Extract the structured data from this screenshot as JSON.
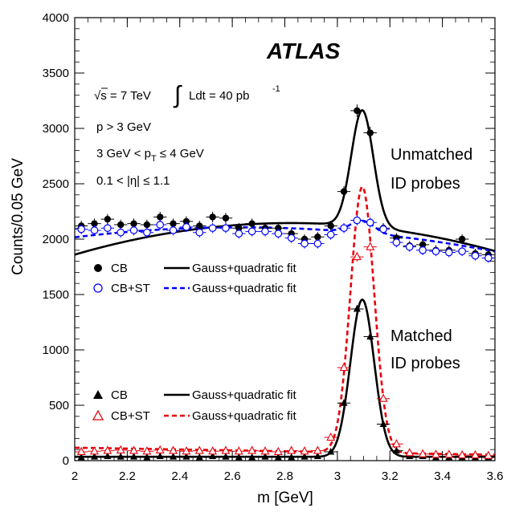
{
  "chart_data": {
    "type": "scatter",
    "xlabel": "m [GeV]",
    "ylabel": "Counts/0.05 GeV",
    "xlim": [
      2.0,
      3.6
    ],
    "ylim": [
      0,
      4000
    ],
    "x_ticks": [
      "2",
      "2.2",
      "2.4",
      "2.6",
      "2.8",
      "3",
      "3.2",
      "3.4",
      "3.6"
    ],
    "y_ticks": [
      "0",
      "500",
      "1000",
      "1500",
      "2000",
      "2500",
      "3000",
      "3500",
      "4000"
    ],
    "x_tick_values": [
      2.0,
      2.2,
      2.4,
      2.6,
      2.8,
      3.0,
      3.2,
      3.4,
      3.6
    ],
    "y_tick_values": [
      0,
      500,
      1000,
      1500,
      2000,
      2500,
      3000,
      3500,
      4000
    ],
    "atlas_label": "ATLAS",
    "info": {
      "sqrt_s": "√s = 7 TeV",
      "lumi_integral": "∫",
      "lumi_text": "Ldt = 40 pb",
      "lumi_exp": "-1",
      "p_cut": "p > 3 GeV",
      "pt_cut_a": "3 GeV < p",
      "pt_cut_sub": "T",
      "pt_cut_b": " ≤ 4 GeV",
      "eta_cut": "0.1 < |η| ≤ 1.1"
    },
    "annotations": {
      "unmatched_1": "Unmatched",
      "unmatched_2": "ID probes",
      "matched_1": "Matched",
      "matched_2": "ID probes"
    },
    "legend_top": {
      "m1": "CB",
      "m2": "CB+ST",
      "l1": "Gauss+quadratic fit",
      "l2": "Gauss+quadratic fit"
    },
    "legend_bottom": {
      "m1": "CB",
      "m2": "CB+ST",
      "l1": "Gauss+quadratic fit",
      "l2": "Gauss+quadratic fit"
    },
    "x": [
      2.025,
      2.075,
      2.125,
      2.175,
      2.225,
      2.275,
      2.325,
      2.375,
      2.425,
      2.475,
      2.525,
      2.575,
      2.625,
      2.675,
      2.725,
      2.775,
      2.825,
      2.875,
      2.925,
      2.975,
      3.025,
      3.075,
      3.125,
      3.175,
      3.225,
      3.275,
      3.325,
      3.375,
      3.425,
      3.475,
      3.525,
      3.575
    ],
    "series": [
      {
        "name": "CB",
        "group": "Unmatched ID probes",
        "marker": "filled-circle",
        "color": "#000000",
        "values": [
          2120,
          2140,
          2180,
          2130,
          2140,
          2130,
          2200,
          2140,
          2160,
          2120,
          2200,
          2190,
          2100,
          2140,
          2100,
          2100,
          2050,
          2000,
          2020,
          2120,
          2430,
          3160,
          2960,
          2100,
          2010,
          1940,
          1950,
          1900,
          1900,
          2000,
          1870,
          1860
        ]
      },
      {
        "name": "CB+ST",
        "group": "Unmatched ID probes",
        "marker": "open-circle",
        "color": "#0000ff",
        "values": [
          2090,
          2080,
          2100,
          2060,
          2080,
          2060,
          2130,
          2080,
          2110,
          2060,
          2100,
          2100,
          2050,
          2070,
          2070,
          2050,
          2010,
          1960,
          1960,
          2040,
          2100,
          2170,
          2150,
          2090,
          1970,
          1930,
          1900,
          1890,
          1880,
          1890,
          1850,
          1830
        ]
      },
      {
        "name": "CB",
        "group": "Matched ID probes",
        "marker": "filled-triangle",
        "color": "#000000",
        "values": [
          30,
          35,
          40,
          35,
          35,
          30,
          40,
          35,
          35,
          30,
          40,
          35,
          30,
          30,
          35,
          30,
          30,
          35,
          40,
          80,
          520,
          1370,
          1120,
          330,
          90,
          40,
          40,
          30,
          30,
          30,
          30,
          30
        ]
      },
      {
        "name": "CB+ST",
        "group": "Matched ID probes",
        "marker": "open-triangle",
        "color": "#e8000b",
        "values": [
          80,
          85,
          90,
          95,
          90,
          85,
          95,
          90,
          85,
          90,
          85,
          90,
          85,
          90,
          85,
          80,
          90,
          85,
          90,
          210,
          840,
          1840,
          1930,
          560,
          150,
          70,
          60,
          55,
          55,
          50,
          50,
          45
        ]
      }
    ],
    "fits": [
      {
        "name": "Gauss+quadratic fit",
        "applies_to": "CB unmatched",
        "style": "solid",
        "color": "#000000",
        "amp": 1050,
        "mu": 3.095,
        "sigma": 0.042,
        "a": 2145,
        "b": 20,
        "c": -420
      },
      {
        "name": "Gauss+quadratic fit",
        "applies_to": "CB+ST unmatched",
        "style": "dashed",
        "color": "#0000ff",
        "amp": 110,
        "mu": 3.095,
        "sigma": 0.045,
        "a": 2100,
        "b": -80,
        "c": -230
      },
      {
        "name": "Gauss+quadratic fit",
        "applies_to": "CB matched",
        "style": "solid",
        "color": "#000000",
        "amp": 1420,
        "mu": 3.095,
        "sigma": 0.045,
        "a": 35,
        "b": 0,
        "c": 0
      },
      {
        "name": "Gauss+quadratic fit",
        "applies_to": "CB+ST matched",
        "style": "dashed",
        "color": "#e8000b",
        "amp": 2400,
        "mu": 3.095,
        "sigma": 0.045,
        "a": 85,
        "b": -40,
        "c": 0
      }
    ],
    "grid": false,
    "legend_placement": "left, middle and bottom"
  }
}
